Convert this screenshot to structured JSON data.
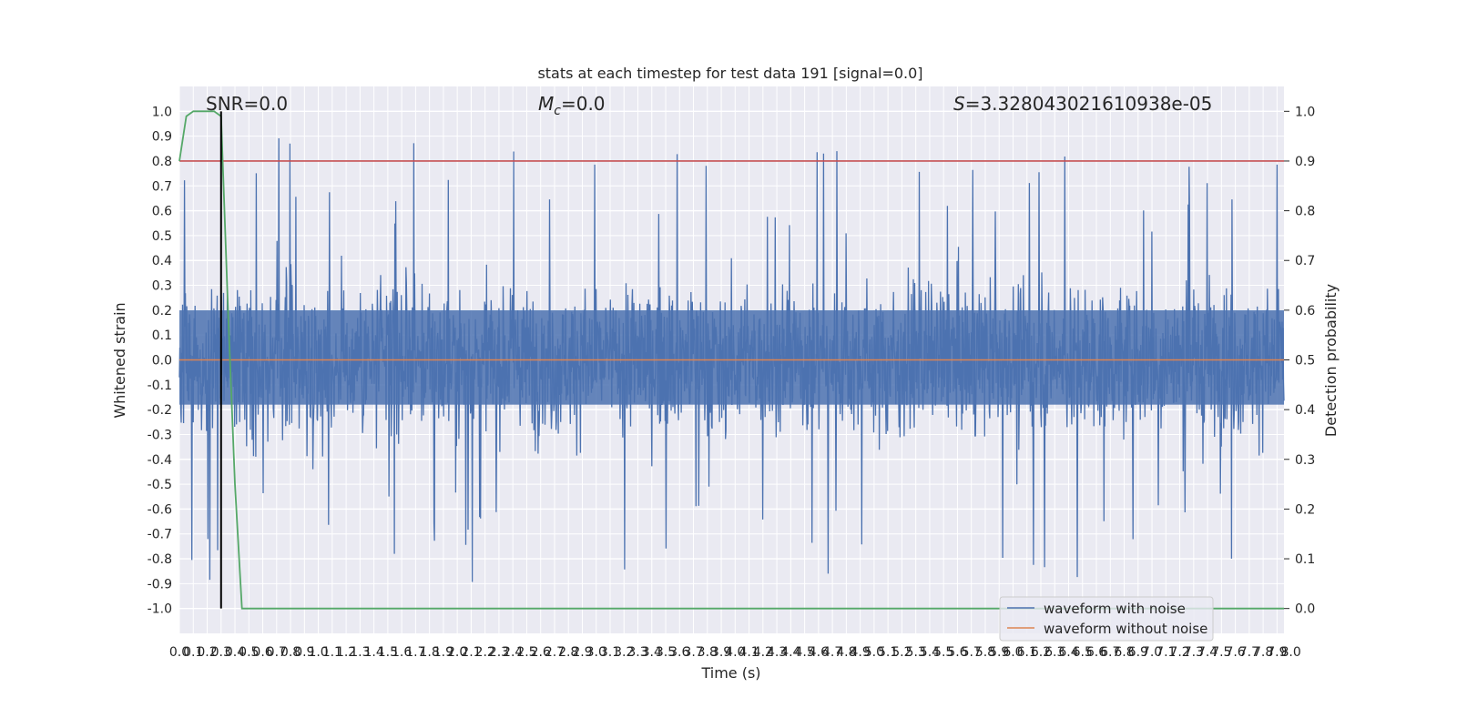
{
  "chart_data": {
    "type": "line",
    "title": "stats at each timestep for test data 191 [signal=0.0]",
    "xlabel": "Time (s)",
    "ylabel": "Whitened strain",
    "y2label": "Detection probability",
    "xlim": [
      0,
      7.95
    ],
    "ylim": [
      -1.1,
      1.1
    ],
    "y2lim": [
      -0.05,
      1.05
    ],
    "x_tick_step": 0.1,
    "yticks": [
      -1.0,
      -0.9,
      -0.8,
      -0.7,
      -0.6,
      -0.5,
      -0.4,
      -0.3,
      -0.2,
      -0.1,
      0.0,
      0.1,
      0.2,
      0.3,
      0.4,
      0.5,
      0.6,
      0.7,
      0.8,
      0.9,
      1.0
    ],
    "ytick_labels": [
      "-1.0",
      "-0.9",
      "-0.8",
      "-0.7",
      "-0.6",
      "-0.5",
      "-0.4",
      "-0.3",
      "-0.2",
      "-0.1",
      "0.0",
      "0.1",
      "0.2",
      "0.3",
      "0.4",
      "0.5",
      "0.6",
      "0.7",
      "0.8",
      "0.9",
      "1.0"
    ],
    "y2ticks": [
      0.0,
      0.1,
      0.2,
      0.3,
      0.4,
      0.5,
      0.6,
      0.7,
      0.8,
      0.9,
      1.0
    ],
    "y2tick_labels": [
      "0.0",
      "0.1",
      "0.2",
      "0.3",
      "0.4",
      "0.5",
      "0.6",
      "0.7",
      "0.8",
      "0.9",
      "1.0"
    ],
    "grid": true,
    "legend_placement": "lower right",
    "annotations": {
      "snr": "SNR=0.0",
      "mc_symbol": "M",
      "mc_sub": "c",
      "mc_value": "=0.0",
      "s_symbol": "S",
      "s_value": "=3.328043021610938e-05"
    },
    "series": [
      {
        "name": "waveform with noise",
        "axis": "left",
        "color": "#4c72b0",
        "style": "dense noise",
        "envelope_range": [
          -0.97,
          0.95
        ],
        "note_values": "noise roughly bounded between -0.4 and 0.4 with spikes up to 0.95 and down to -0.97"
      },
      {
        "name": "waveform without noise",
        "axis": "left",
        "color": "#dd8452",
        "x": [
          0,
          7.95
        ],
        "y": [
          0.0,
          0.0
        ]
      },
      {
        "axis": "right",
        "color": "#55a868",
        "x": [
          0.0,
          0.05,
          0.1,
          0.15,
          0.2,
          0.25,
          0.3,
          0.35,
          0.4,
          0.45,
          7.95
        ],
        "y": [
          0.9,
          0.99,
          1.0,
          1.0,
          1.0,
          1.0,
          0.99,
          0.6,
          0.25,
          0.0,
          0.0
        ]
      },
      {
        "axis": "right",
        "color": "#c44e52",
        "x": [
          0,
          7.95
        ],
        "y": [
          0.9,
          0.9
        ]
      },
      {
        "axis": "vertical",
        "color": "#000000",
        "x": [
          0.3,
          0.3
        ],
        "y2": [
          0.0,
          1.0
        ]
      }
    ]
  },
  "colors": {
    "plot_bg": "#eaeaf2",
    "grid": "#ffffff",
    "noise": "#4c72b0",
    "clean": "#dd8452",
    "probability": "#55a868",
    "threshold": "#c44e52",
    "marker": "#000000"
  }
}
